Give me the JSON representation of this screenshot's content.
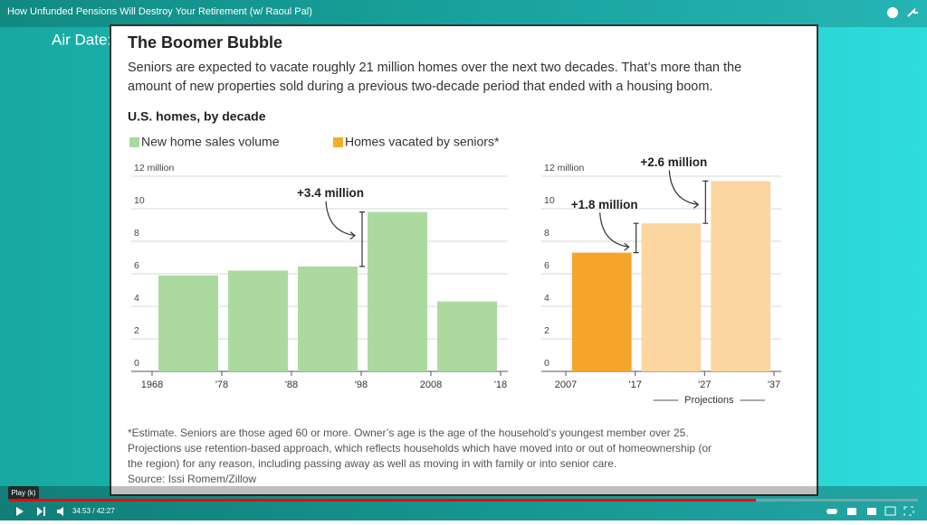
{
  "player": {
    "title": "How Unfunded Pensions Will Destroy Your Retirement (w/ Raoul Pal)",
    "air_date": "Air Date:",
    "tooltip": "Play (k)",
    "time": "34:53 / 42:27"
  },
  "slide": {
    "title": "The Boomer Bubble",
    "subtitle": [
      "Seniors are expected to vacate roughly 21 million homes over the next two decades. That’s more than the",
      "amount of new properties sold during a previous two-decade period that ended with a housing boom."
    ],
    "heading": "U.S. homes, by decade",
    "notes": [
      "*Estimate. Seniors are those aged 60 or more. Owner’s age is the age of the household’s youngest member over 25.",
      "Projections use retention-based approach, which reflects households which have moved into or out of homeownership (or",
      "the region) for any reason, including passing away as well as moving in with family or into senior care."
    ],
    "source": "Source: Issi Romem/Zillow"
  },
  "chart_data": [
    {
      "type": "histogram",
      "bins": [
        1968,
        1978,
        1988,
        1998,
        2008,
        2018
      ],
      "series": [
        {
          "name": "New home sales volume",
          "color": "#acd9a0",
          "values": [
            5.9,
            6.2,
            6.45,
            9.8,
            4.3
          ]
        }
      ],
      "xlim": [
        1968,
        2018
      ],
      "xticks": [
        1968,
        {
          "value": 1978,
          "label": "'78"
        },
        {
          "value": 1988,
          "label": "'88"
        },
        {
          "value": 1998,
          "label": "'98"
        },
        2008,
        {
          "value": 2018,
          "label": "'18"
        }
      ],
      "ylim": [
        0,
        12
      ],
      "yticks": [
        0,
        2,
        4,
        6,
        8,
        10,
        {
          "value": 12,
          "label": "12 million"
        }
      ],
      "grid": true,
      "annotations": [
        "+3.4 million"
      ]
    },
    {
      "type": "histogram",
      "bins": [
        2007,
        2017,
        2027,
        2037
      ],
      "series": [
        {
          "name": "Homes vacated by seniors*",
          "color": "#f7ab2e",
          "values": [
            7.3,
            9.1,
            11.7
          ],
          "bar_colors": [
            "#f5a52a",
            "#fbd6a0",
            "#fbd6a0"
          ]
        }
      ],
      "xlim": [
        2007,
        2037
      ],
      "xticks": [
        2007,
        {
          "value": 2017,
          "label": "'17"
        },
        {
          "value": 2027,
          "label": "'27"
        },
        {
          "value": 2037,
          "label": "'37"
        }
      ],
      "ylim": [
        0,
        12
      ],
      "yticks": [
        0,
        2,
        4,
        6,
        8,
        10,
        {
          "value": 12,
          "label": "12 million"
        }
      ],
      "grid": true,
      "annotations": [
        "+1.8 million",
        "+2.6 million"
      ],
      "xlabel": "Projections"
    }
  ]
}
